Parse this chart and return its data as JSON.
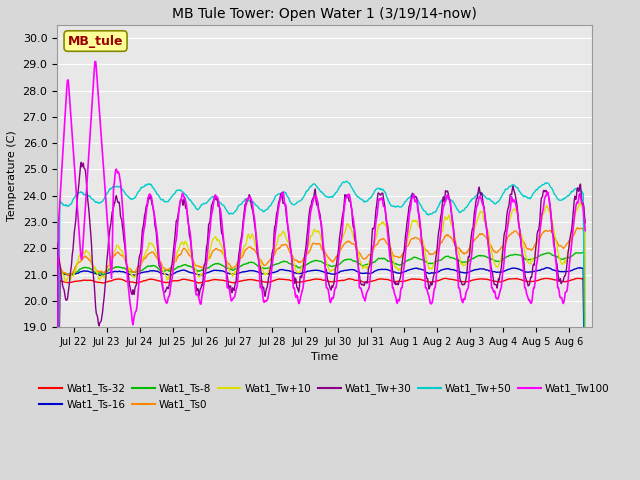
{
  "title": "MB Tule Tower: Open Water 1 (3/19/14-now)",
  "xlabel": "Time",
  "ylabel": "Temperature (C)",
  "ylim": [
    19.0,
    30.5
  ],
  "yticks": [
    19.0,
    20.0,
    21.0,
    22.0,
    23.0,
    24.0,
    25.0,
    26.0,
    27.0,
    28.0,
    29.0,
    30.0
  ],
  "xlim_days": [
    0.0,
    16.2
  ],
  "x_tick_labels": [
    "Jul 22",
    "Jul 23",
    "Jul 24",
    "Jul 25",
    "Jul 26",
    "Jul 27",
    "Jul 28",
    "Jul 29",
    "Jul 30",
    "Jul 31",
    "Aug 1",
    "Aug 2",
    "Aug 3",
    "Aug 4",
    "Aug 5",
    "Aug 6"
  ],
  "x_tick_positions": [
    0.5,
    1.5,
    2.5,
    3.5,
    4.5,
    5.5,
    6.5,
    7.5,
    8.5,
    9.5,
    10.5,
    11.5,
    12.5,
    13.5,
    14.5,
    15.5
  ],
  "series": {
    "Wat1_Ts-32": {
      "color": "#ff0000",
      "lw": 1.0
    },
    "Wat1_Ts-16": {
      "color": "#0000cc",
      "lw": 1.0
    },
    "Wat1_Ts-8": {
      "color": "#00bb00",
      "lw": 1.0
    },
    "Wat1_Ts0": {
      "color": "#ff8800",
      "lw": 1.0
    },
    "Wat1_Tw+10": {
      "color": "#dddd00",
      "lw": 1.0
    },
    "Wat1_Tw+30": {
      "color": "#880088",
      "lw": 1.0
    },
    "Wat1_Tw+50": {
      "color": "#00cccc",
      "lw": 1.0
    },
    "Wat1_Tw100": {
      "color": "#ff00ff",
      "lw": 1.2
    }
  },
  "bg_color": "#d8d8d8",
  "plot_bg_color": "#e8e8e8",
  "grid_color": "#ffffff",
  "annotation_label": "MB_tule",
  "annotation_color": "#990000",
  "annotation_bg": "#ffff99",
  "annotation_border": "#888800"
}
